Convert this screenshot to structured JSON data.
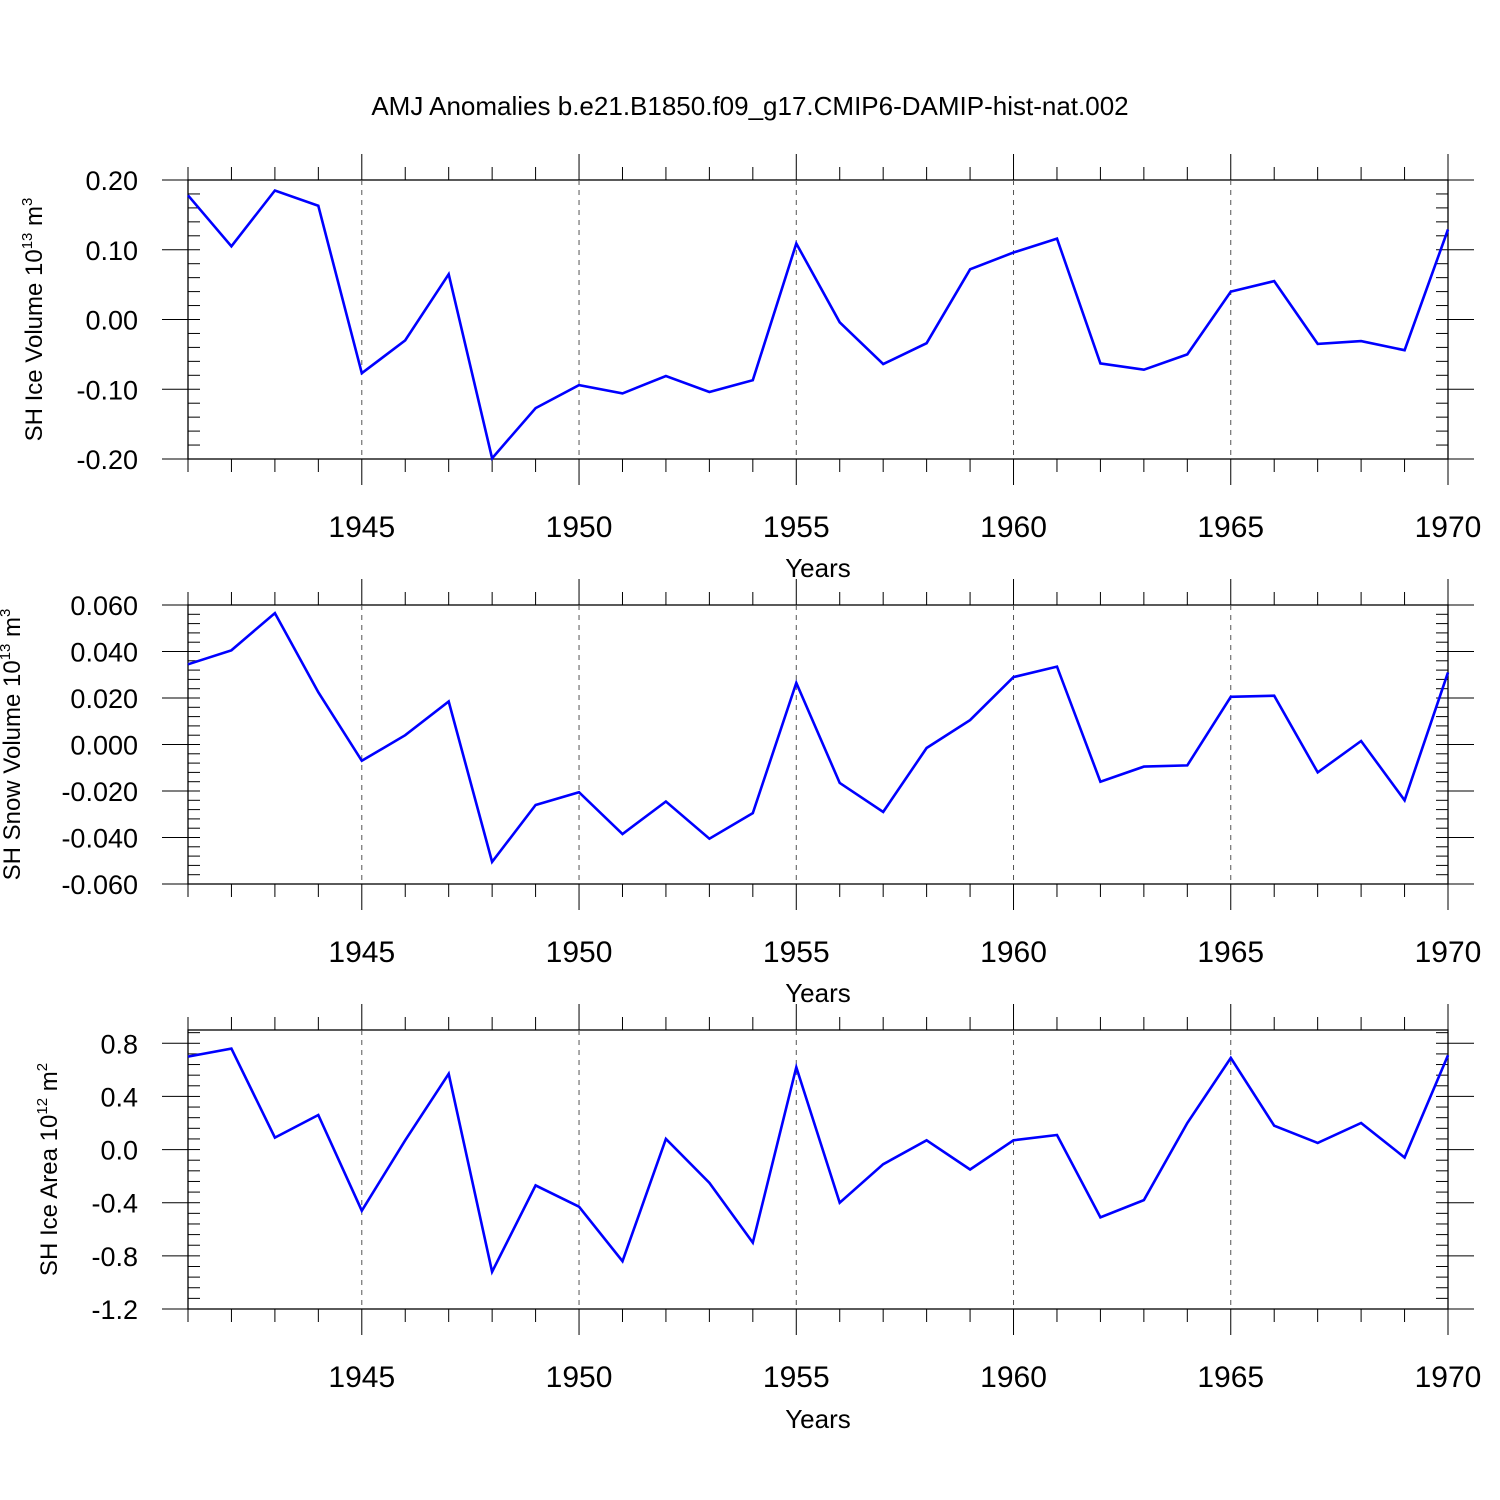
{
  "title": "AMJ Anomalies b.e21.B1850.f09_g17.CMIP6-DAMIP-hist-nat.002",
  "chart_data": [
    {
      "type": "line",
      "ylabel": {
        "text": "SH Ice Volume 10",
        "exp": "13",
        "unit": " m",
        "unit_exp": "3"
      },
      "xlabel": "Years",
      "xlim": [
        1941,
        1970
      ],
      "ylim": [
        -0.2,
        0.2
      ],
      "xticks": [
        "1945",
        "1950",
        "1955",
        "1960",
        "1965",
        "1970"
      ],
      "yticks": [
        "0.20",
        "0.10",
        "0.00",
        "-0.10",
        "-0.20"
      ],
      "ytick_values": [
        0.2,
        0.1,
        0.0,
        -0.1,
        -0.2
      ],
      "grid": "vertical dashed at major x ticks",
      "line_color": "#0000ff",
      "series": [
        {
          "x": [
            1941,
            1942,
            1943,
            1944,
            1945,
            1946,
            1947,
            1948,
            1949,
            1950,
            1951,
            1952,
            1953,
            1954,
            1955,
            1956,
            1957,
            1958,
            1959,
            1960,
            1961,
            1962,
            1963,
            1964,
            1965,
            1966,
            1967,
            1968,
            1969,
            1970
          ],
          "values": [
            0.178,
            0.105,
            0.185,
            0.163,
            -0.077,
            -0.03,
            0.065,
            -0.199,
            -0.127,
            -0.094,
            -0.106,
            -0.081,
            -0.104,
            -0.087,
            0.109,
            -0.004,
            -0.064,
            -0.034,
            0.072,
            0.096,
            0.116,
            -0.063,
            -0.072,
            -0.05,
            0.04,
            0.055,
            -0.035,
            -0.031,
            -0.044,
            0.129
          ]
        }
      ]
    },
    {
      "type": "line",
      "ylabel": {
        "text": "SH Snow Volume 10",
        "exp": "13",
        "unit": " m",
        "unit_exp": "3"
      },
      "xlabel": "Years",
      "xlim": [
        1941,
        1970
      ],
      "ylim": [
        -0.06,
        0.06
      ],
      "xticks": [
        "1945",
        "1950",
        "1955",
        "1960",
        "1965",
        "1970"
      ],
      "yticks": [
        "0.060",
        "0.040",
        "0.020",
        "0.000",
        "-0.020",
        "-0.040",
        "-0.060"
      ],
      "ytick_values": [
        0.06,
        0.04,
        0.02,
        0.0,
        -0.02,
        -0.04,
        -0.06
      ],
      "grid": "vertical dashed at major x ticks",
      "line_color": "#0000ff",
      "series": [
        {
          "x": [
            1941,
            1942,
            1943,
            1944,
            1945,
            1946,
            1947,
            1948,
            1949,
            1950,
            1951,
            1952,
            1953,
            1954,
            1955,
            1956,
            1957,
            1958,
            1959,
            1960,
            1961,
            1962,
            1963,
            1964,
            1965,
            1966,
            1967,
            1968,
            1969,
            1970
          ],
          "values": [
            0.0345,
            0.0405,
            0.0565,
            0.0225,
            -0.007,
            0.004,
            0.0185,
            -0.0505,
            -0.026,
            -0.0205,
            -0.0385,
            -0.0245,
            -0.0405,
            -0.0295,
            0.0265,
            -0.0165,
            -0.029,
            -0.0015,
            0.0105,
            0.029,
            0.0335,
            -0.016,
            -0.0095,
            -0.009,
            0.0205,
            0.021,
            -0.012,
            0.0015,
            -0.024,
            0.031
          ]
        }
      ]
    },
    {
      "type": "line",
      "ylabel": {
        "text": "SH Ice Area 10",
        "exp": "12",
        "unit": " m",
        "unit_exp": "2"
      },
      "xlabel": "Years",
      "xlim": [
        1941,
        1970
      ],
      "ylim": [
        -1.2,
        0.9
      ],
      "xticks": [
        "1945",
        "1950",
        "1955",
        "1960",
        "1965",
        "1970"
      ],
      "yticks": [
        "0.8",
        "0.4",
        "0.0",
        "-0.4",
        "-0.8",
        "-1.2"
      ],
      "ytick_values": [
        0.8,
        0.4,
        0.0,
        -0.4,
        -0.8,
        -1.2
      ],
      "grid": "vertical dashed at major x ticks",
      "line_color": "#0000ff",
      "series": [
        {
          "x": [
            1941,
            1942,
            1943,
            1944,
            1945,
            1946,
            1947,
            1948,
            1949,
            1950,
            1951,
            1952,
            1953,
            1954,
            1955,
            1956,
            1957,
            1958,
            1959,
            1960,
            1961,
            1962,
            1963,
            1964,
            1965,
            1966,
            1967,
            1968,
            1969,
            1970
          ],
          "values": [
            0.7,
            0.76,
            0.09,
            0.26,
            -0.46,
            0.07,
            0.57,
            -0.92,
            -0.27,
            -0.43,
            -0.84,
            0.08,
            -0.25,
            -0.7,
            0.62,
            -0.4,
            -0.11,
            0.07,
            -0.15,
            0.07,
            0.11,
            -0.51,
            -0.38,
            0.2,
            0.69,
            0.18,
            0.05,
            0.2,
            -0.06,
            0.71
          ]
        }
      ]
    }
  ]
}
